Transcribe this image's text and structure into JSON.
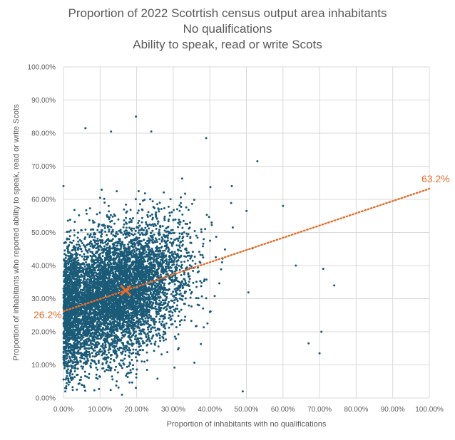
{
  "chart_data": {
    "type": "scatter",
    "title_lines": [
      "Proportion of 2022 Scotrtish census output area inhabitants",
      "No qualifications",
      "Ability to speak, read or write Scots"
    ],
    "xlabel": "Proportion of inhabitants with no qualifications",
    "ylabel": "Proportion of inhabitants who reported ability to speak, read or write Scots",
    "xlim": [
      0,
      1
    ],
    "ylim": [
      0,
      1
    ],
    "x_ticks": [
      "0.00%",
      "10.00%",
      "20.00%",
      "30.00%",
      "40.00%",
      "50.00%",
      "60.00%",
      "70.00%",
      "80.00%",
      "90.00%",
      "100.00%"
    ],
    "y_ticks": [
      "0.00%",
      "10.00%",
      "20.00%",
      "30.00%",
      "40.00%",
      "50.00%",
      "60.00%",
      "70.00%",
      "80.00%",
      "90.00%",
      "100.00%"
    ],
    "grid": true,
    "point_color": "#1b5b78",
    "trend_color": "#e46d2b",
    "trendline": {
      "x": [
        0,
        1
      ],
      "y": [
        0.262,
        0.632
      ],
      "start_label": "26.2%",
      "end_label": "63.2%"
    },
    "mean_marker": {
      "x": 0.17,
      "y": 0.325
    },
    "outliers": [
      {
        "x": 0.198,
        "y": 0.85
      },
      {
        "x": 0.06,
        "y": 0.815
      },
      {
        "x": 0.13,
        "y": 0.805
      },
      {
        "x": 0.24,
        "y": 0.805
      },
      {
        "x": 0.39,
        "y": 0.785
      },
      {
        "x": 0.53,
        "y": 0.715
      },
      {
        "x": 0.46,
        "y": 0.64
      },
      {
        "x": 0.6,
        "y": 0.58
      },
      {
        "x": 0.74,
        "y": 0.34
      },
      {
        "x": 0.71,
        "y": 0.39
      },
      {
        "x": 0.705,
        "y": 0.2
      },
      {
        "x": 0.7,
        "y": 0.135
      },
      {
        "x": 0.67,
        "y": 0.165
      },
      {
        "x": 0.635,
        "y": 0.4
      },
      {
        "x": 0.0,
        "y": 0.64
      },
      {
        "x": 0.005,
        "y": 0.02
      },
      {
        "x": 0.49,
        "y": 0.02
      },
      {
        "x": 0.05,
        "y": 0.04
      },
      {
        "x": 0.16,
        "y": 0.01
      }
    ]
  }
}
